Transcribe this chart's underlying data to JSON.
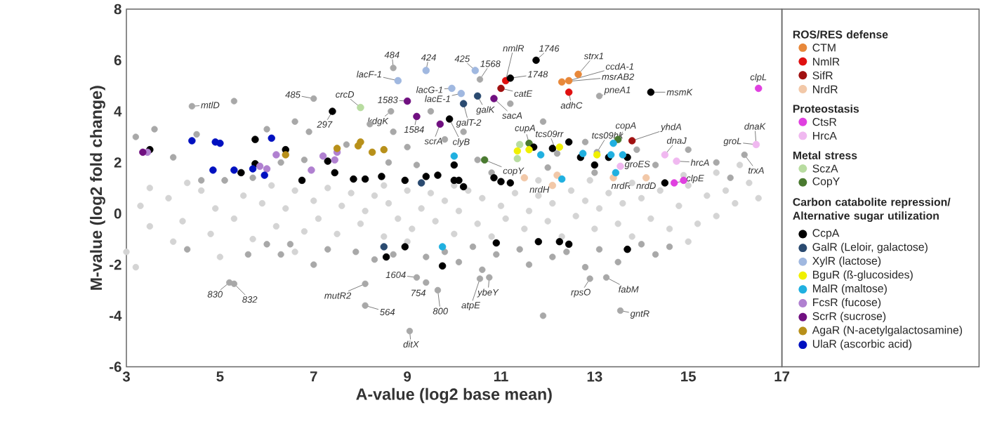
{
  "chart_data": {
    "type": "scatter",
    "xlabel": "A-value (log2 base mean)",
    "ylabel": "M-value (log2 fold change)",
    "xlim": [
      3,
      17
    ],
    "ylim": [
      -6,
      8
    ],
    "xticks": [
      3,
      5,
      7,
      9,
      11,
      13,
      15,
      17
    ],
    "yticks": [
      -6,
      -4,
      -2,
      0,
      2,
      4,
      6,
      8
    ],
    "legend": "right",
    "series": [
      {
        "color": "#d4d4d4",
        "x": [
          3.0,
          3.3,
          3.5,
          3.5,
          3.9,
          4.2,
          4.3,
          4.6,
          4.8,
          4.9,
          5.1,
          5.3,
          5.5,
          5.7,
          5.9,
          6.1,
          6.2,
          6.4,
          6.6,
          6.8,
          7.0,
          7.1,
          7.3,
          7.5,
          7.6,
          7.8,
          8.0,
          8.1,
          8.3,
          8.5,
          8.6,
          8.8,
          9.0,
          9.1,
          9.3,
          9.5,
          9.6,
          9.8,
          10.0,
          10.1,
          10.3,
          10.5,
          10.6,
          10.8,
          11.0,
          11.1,
          11.3,
          11.5,
          11.6,
          11.8,
          12.0,
          12.1,
          12.3,
          12.5,
          12.6,
          12.8,
          13.0,
          13.1,
          13.3,
          13.5,
          13.6,
          13.8,
          14.0,
          14.2,
          14.4,
          14.6,
          14.8,
          15.0,
          15.2,
          15.4,
          15.6,
          15.8,
          16.0,
          16.3,
          16.5,
          3.2,
          4.0,
          5.0,
          6.6,
          11.8,
          12.9,
          14.9,
          15.6,
          16.1,
          10.0,
          8.5,
          9.0,
          13.8,
          15.0
        ],
        "values": [
          -1.5,
          0.3,
          1.0,
          -0.5,
          0.6,
          -0.3,
          1.2,
          0.9,
          -0.8,
          0.2,
          1.3,
          -0.2,
          0.7,
          -1.0,
          0.4,
          1.1,
          -0.5,
          0.2,
          0.9,
          -0.7,
          0.5,
          -0.2,
          1.0,
          -0.8,
          0.3,
          0.8,
          -0.4,
          0.1,
          0.7,
          -0.9,
          0.4,
          -0.2,
          0.9,
          -0.6,
          0.2,
          0.8,
          -0.3,
          0.5,
          -0.8,
          0.1,
          0.9,
          -0.4,
          0.6,
          -0.9,
          0.3,
          -0.2,
          0.8,
          -0.6,
          0.1,
          0.7,
          -0.3,
          0.4,
          -0.9,
          0.9,
          -0.1,
          0.5,
          -0.6,
          0.2,
          0.8,
          -0.4,
          0.4,
          -0.9,
          0.6,
          -0.2,
          0.9,
          -0.6,
          0.3,
          1.1,
          -0.4,
          0.7,
          -0.1,
          0.9,
          0.4,
          1.2,
          0.6,
          -2.1,
          -1.1,
          -1.7,
          -1.5,
          1.3,
          1.3,
          1.5,
          1.6,
          1.9,
          1.1,
          1.1,
          -1.1,
          1.2,
          -1.1
        ]
      },
      {
        "color": "#a8a8a8",
        "x": [
          3.2,
          3.6,
          4.0,
          4.5,
          4.6,
          5.1,
          5.3,
          5.7,
          6.0,
          6.3,
          6.6,
          6.8,
          6.9,
          7.7,
          8.2,
          8.7,
          8.6,
          9.0,
          9.2,
          9.5,
          9.8,
          10.2,
          10.5,
          10.8,
          11.2,
          11.9,
          12.0,
          12.8,
          13.0,
          13.9,
          14.3,
          15.0,
          15.6,
          15.9,
          4.3,
          5.6,
          6.0,
          6.3,
          6.5,
          7.0,
          7.3,
          7.9,
          8.3,
          8.7,
          9.4,
          9.8,
          10.1,
          10.4,
          10.6,
          10.9,
          11.4,
          11.6,
          11.9,
          12.1,
          12.4,
          12.8,
          13.1,
          13.5,
          14.0,
          14.3,
          14.6,
          4.4,
          7.0,
          8.7,
          10.55,
          8.65,
          13.1,
          16.2,
          12.2,
          13.05,
          5.2,
          5.3,
          8.1,
          8.1,
          9.2,
          9.4,
          9.65,
          9.05,
          10.55,
          10.75,
          12.9,
          13.25,
          13.55
        ],
        "values": [
          3.0,
          3.3,
          2.2,
          3.1,
          1.3,
          1.3,
          4.4,
          1.4,
          3.3,
          2.0,
          3.6,
          2.1,
          3.2,
          2.7,
          3.5,
          3.2,
          2.0,
          2.6,
          1.9,
          4.0,
          2.9,
          3.2,
          2.1,
          1.6,
          4.3,
          3.6,
          1.8,
          2.8,
          1.6,
          2.5,
          1.9,
          2.5,
          2.0,
          1.4,
          -1.4,
          -1.6,
          -1.2,
          -1.6,
          -1.2,
          -2.0,
          -1.4,
          -1.5,
          -1.8,
          -1.6,
          -1.7,
          -1.5,
          -1.9,
          -1.3,
          -2.2,
          -1.6,
          -1.4,
          -2.0,
          -4.0,
          -1.7,
          -1.5,
          -2.1,
          -1.4,
          -1.9,
          -1.2,
          -1.6,
          -1.3,
          4.2,
          4.5,
          5.7,
          5.25,
          4.0,
          4.6,
          2.3,
          2.35,
          2.4,
          -2.7,
          -2.75,
          -2.75,
          -3.6,
          -2.5,
          -2.7,
          -3.0,
          -4.6,
          -2.55,
          -2.5,
          -2.55,
          -2.5,
          -3.8
        ]
      },
      {
        "name": "CTM",
        "color": "#e8883a",
        "x": [
          12.3,
          12.45,
          12.65
        ],
        "values": [
          5.15,
          5.2,
          5.45
        ]
      },
      {
        "name": "NmlR",
        "color": "#e01010",
        "x": [
          11.1,
          12.45
        ],
        "values": [
          5.2,
          4.75
        ]
      },
      {
        "name": "SifR",
        "color": "#a01010",
        "x": [
          11.0,
          13.8
        ],
        "values": [
          4.9,
          2.85
        ]
      },
      {
        "name": "NrdR",
        "color": "#f2c8a8",
        "x": [
          11.5,
          12.2,
          13.4,
          14.1,
          12.1
        ],
        "values": [
          1.4,
          1.5,
          1.4,
          1.4,
          1.1
        ]
      },
      {
        "name": "CtsR",
        "color": "#e040e0",
        "x": [
          16.5,
          14.7,
          14.9
        ],
        "values": [
          4.9,
          1.2,
          1.3
        ]
      },
      {
        "name": "HrcA",
        "color": "#f0b8f0",
        "x": [
          16.45,
          14.5,
          14.75,
          13.55
        ],
        "values": [
          2.7,
          2.3,
          2.05,
          1.85
        ]
      },
      {
        "name": "SczA",
        "color": "#b8dca0",
        "x": [
          8.0,
          11.4,
          11.35
        ],
        "values": [
          4.15,
          2.7,
          2.15
        ]
      },
      {
        "name": "CopY",
        "color": "#4a7a30",
        "x": [
          10.65,
          11.6,
          13.5
        ],
        "values": [
          2.1,
          2.75,
          2.9
        ]
      },
      {
        "name": "CcpA",
        "color": "#000000",
        "x": [
          3.5,
          5.75,
          5.45,
          5.75,
          6.4,
          6.75,
          7.3,
          7.45,
          7.85,
          8.1,
          8.45,
          8.95,
          9.4,
          9.65,
          10.0,
          10.1,
          10.2,
          10.85,
          10.0,
          11.0,
          11.2,
          7.4,
          9.9,
          11.75,
          11.2,
          14.2,
          11.7,
          12.1,
          12.45,
          12.7,
          13.3,
          13.7,
          13.0,
          14.5,
          8.55,
          8.95,
          9.75,
          10.9,
          11.8,
          12.25,
          12.45,
          13.7
        ],
        "values": [
          2.5,
          2.9,
          1.6,
          1.95,
          2.5,
          1.3,
          2.05,
          1.6,
          1.35,
          1.35,
          1.45,
          1.3,
          1.45,
          1.5,
          1.3,
          1.3,
          1.05,
          1.4,
          1.9,
          1.25,
          1.2,
          4.0,
          3.7,
          6.0,
          5.3,
          4.75,
          2.6,
          2.55,
          2.8,
          2.2,
          2.2,
          2.2,
          1.9,
          1.2,
          -1.7,
          -1.3,
          -2.05,
          -1.15,
          -1.1,
          -1.1,
          -1.2,
          -1.4
        ]
      },
      {
        "name": "GalR  (Leloir, galactose)",
        "color": "#2a4a70",
        "x": [
          10.5,
          10.2,
          8.5,
          9.3
        ],
        "values": [
          4.6,
          4.3,
          -1.3,
          1.2
        ]
      },
      {
        "name": "XylR  (lactose)",
        "color": "#a0b8e0",
        "x": [
          8.8,
          9.4,
          10.45,
          9.95,
          10.15
        ],
        "values": [
          5.2,
          5.6,
          5.6,
          4.9,
          4.7
        ]
      },
      {
        "name": "BguR (ß-glucosides)",
        "color": "#f0f000",
        "x": [
          11.35,
          11.6,
          12.25,
          13.05
        ],
        "values": [
          2.45,
          2.5,
          2.6,
          2.3
        ]
      },
      {
        "name": "MalR  (maltose)",
        "color": "#20b0e0",
        "x": [
          10.0,
          11.85,
          12.75,
          13.4,
          13.35,
          13.6,
          13.45,
          12.3,
          9.75
        ],
        "values": [
          2.25,
          2.3,
          2.35,
          2.75,
          2.3,
          2.3,
          1.6,
          1.35,
          -1.3
        ]
      },
      {
        "name": "FcsR  (fucose)",
        "color": "#b080d0",
        "x": [
          3.45,
          5.85,
          6.0,
          6.2,
          6.95,
          7.2,
          7.45,
          7.5
        ],
        "values": [
          2.4,
          1.85,
          1.75,
          2.3,
          1.7,
          2.25,
          2.1,
          2.4
        ]
      },
      {
        "name": "ScrR  (sucrose)",
        "color": "#701080",
        "x": [
          9.0,
          9.2,
          9.7,
          10.85,
          3.35
        ],
        "values": [
          4.4,
          3.8,
          3.5,
          4.5,
          2.4
        ]
      },
      {
        "name": "AgaR (N-acetylgalactosamine)",
        "color": "#b8901a",
        "x": [
          6.4,
          7.5,
          7.95,
          8.25,
          8.0,
          8.5
        ],
        "values": [
          2.3,
          2.55,
          2.65,
          2.4,
          2.8,
          2.5
        ]
      },
      {
        "name": "UlaR  (ascorbic acid)",
        "color": "#0010c0",
        "x": [
          4.4,
          4.9,
          5.0,
          5.3,
          5.7,
          5.95,
          6.1,
          4.85
        ],
        "values": [
          2.85,
          2.8,
          2.75,
          1.7,
          1.75,
          1.5,
          2.95,
          1.7
        ]
      }
    ],
    "annotations": [
      "ROS/RES defense",
      "Proteostasis",
      "Metal stress",
      "Carbon catabolite repression/ Alternative sugar utilization",
      {
        "text": "mtlD",
        "x": 4.4,
        "y": 4.2
      },
      {
        "text": "485",
        "x": 7.0,
        "y": 4.5
      },
      {
        "text": "484",
        "x": 8.7,
        "y": 5.7
      },
      {
        "text": "lacF-1",
        "x": 8.8,
        "y": 5.2
      },
      {
        "text": "424",
        "x": 9.4,
        "y": 5.6
      },
      {
        "text": "425",
        "x": 10.45,
        "y": 5.6
      },
      {
        "text": "1568",
        "x": 10.55,
        "y": 5.25
      },
      {
        "text": "crcD",
        "x": 8.0,
        "y": 4.15
      },
      {
        "text": "297",
        "x": 7.4,
        "y": 4.0
      },
      {
        "text": "kdgK",
        "x": 8.65,
        "y": 4.0
      },
      {
        "text": "1583",
        "x": 9.0,
        "y": 4.4
      },
      {
        "text": "lacG-1",
        "x": 9.95,
        "y": 4.9
      },
      {
        "text": "lacE-1",
        "x": 10.15,
        "y": 4.7
      },
      {
        "text": "galK",
        "x": 10.5,
        "y": 4.6
      },
      {
        "text": "galT-2",
        "x": 10.2,
        "y": 4.3
      },
      {
        "text": "1584",
        "x": 9.2,
        "y": 3.8
      },
      {
        "text": "scrA",
        "x": 9.7,
        "y": 3.5
      },
      {
        "text": "clyB",
        "x": 9.9,
        "y": 3.7
      },
      {
        "text": "nmlR",
        "x": 11.1,
        "y": 5.2
      },
      {
        "text": "catE",
        "x": 11.0,
        "y": 4.9
      },
      {
        "text": "sacA",
        "x": 10.85,
        "y": 4.5
      },
      {
        "text": "1746",
        "x": 11.75,
        "y": 6.0
      },
      {
        "text": "1748",
        "x": 11.2,
        "y": 5.3
      },
      {
        "text": "strx1",
        "x": 12.65,
        "y": 5.45
      },
      {
        "text": "ccdA-1",
        "x": 12.45,
        "y": 5.2
      },
      {
        "text": "msrAB2",
        "x": 12.3,
        "y": 5.15
      },
      {
        "text": "adhC",
        "x": 12.45,
        "y": 4.75
      },
      {
        "text": "pneA1",
        "x": 13.1,
        "y": 4.6
      },
      {
        "text": "msmK",
        "x": 14.2,
        "y": 4.75
      },
      {
        "text": "clpL",
        "x": 16.5,
        "y": 4.9
      },
      {
        "text": "dnaK",
        "x": 16.45,
        "y": 2.7
      },
      {
        "text": "groL",
        "x": 16.45,
        "y": 2.7
      },
      {
        "text": "trxA",
        "x": 16.2,
        "y": 2.3
      },
      {
        "text": "cupA",
        "x": 11.6,
        "y": 2.75
      },
      {
        "text": "copY",
        "x": 10.65,
        "y": 2.1
      },
      {
        "text": "tcs09rr",
        "x": 12.2,
        "y": 2.35
      },
      {
        "text": "tcs09hk",
        "x": 13.05,
        "y": 2.4
      },
      {
        "text": "copA",
        "x": 13.5,
        "y": 2.9
      },
      {
        "text": "yhdA",
        "x": 13.8,
        "y": 2.85
      },
      {
        "text": "dnaJ",
        "x": 14.5,
        "y": 2.3
      },
      {
        "text": "hrcA",
        "x": 14.75,
        "y": 2.05
      },
      {
        "text": "groES",
        "x": 13.55,
        "y": 1.85
      },
      {
        "text": "clpE",
        "x": 14.7,
        "y": 1.2
      },
      {
        "text": "nrdR",
        "x": 13.4,
        "y": 1.4
      },
      {
        "text": "nrdD",
        "x": 14.1,
        "y": 1.4
      },
      {
        "text": "nrdH",
        "x": 12.1,
        "y": 1.1
      },
      {
        "text": "830",
        "x": 5.2,
        "y": -2.7
      },
      {
        "text": "832",
        "x": 5.3,
        "y": -2.75
      },
      {
        "text": "mutR2",
        "x": 8.1,
        "y": -2.75
      },
      {
        "text": "564",
        "x": 8.1,
        "y": -3.6
      },
      {
        "text": "1604",
        "x": 9.2,
        "y": -2.5
      },
      {
        "text": "754",
        "x": 9.4,
        "y": -2.7
      },
      {
        "text": "800",
        "x": 9.65,
        "y": -3.0
      },
      {
        "text": "ditX",
        "x": 9.05,
        "y": -4.6
      },
      {
        "text": "atpE",
        "x": 10.55,
        "y": -2.55
      },
      {
        "text": "ybeY",
        "x": 10.75,
        "y": -2.5
      },
      {
        "text": "rpsO",
        "x": 12.9,
        "y": -2.55
      },
      {
        "text": "fabM",
        "x": 13.25,
        "y": -2.5
      },
      {
        "text": "gntR",
        "x": 13.55,
        "y": -3.8
      }
    ]
  }
}
